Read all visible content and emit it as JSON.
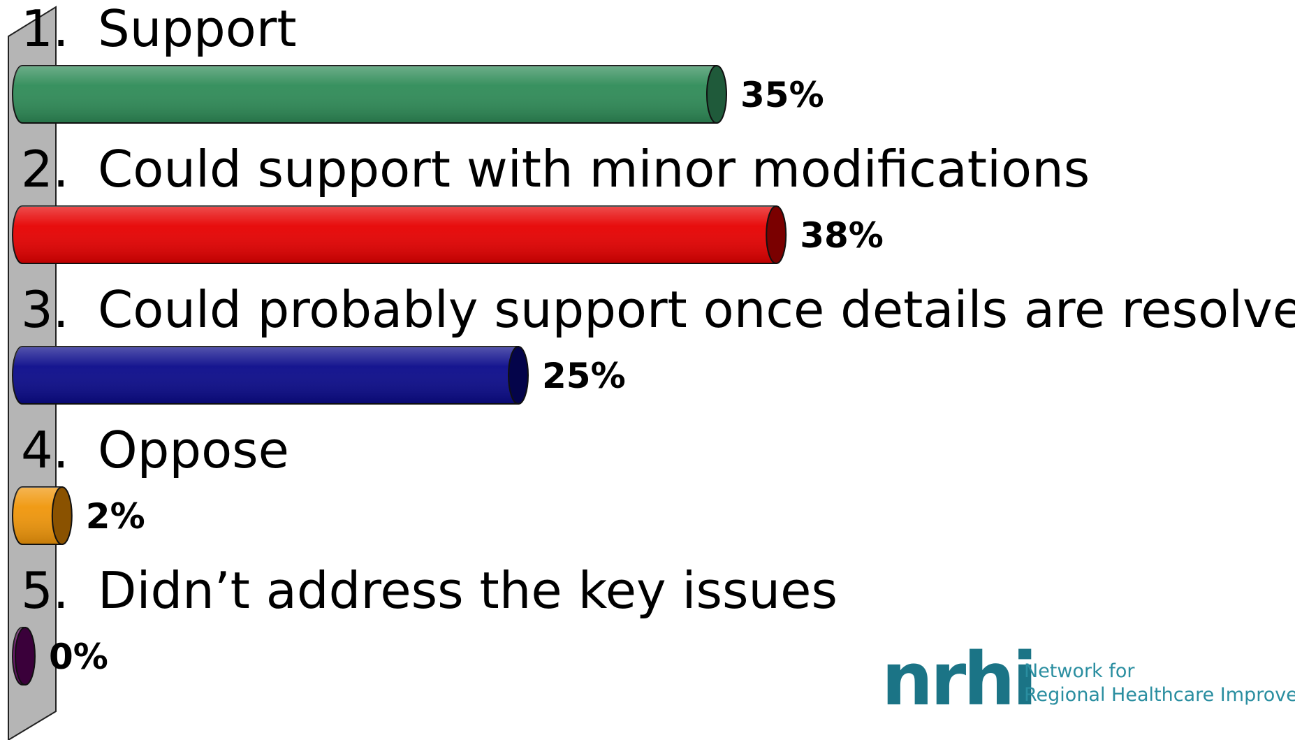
{
  "chart_data": {
    "type": "bar",
    "orientation": "horizontal",
    "categories": [
      {
        "number": "1.",
        "label": "Support",
        "value": 35,
        "display": "35%",
        "color": "#2e8b57",
        "cap": "#1f5a3a"
      },
      {
        "number": "2.",
        "label": "Could support with minor modifications",
        "value": 38,
        "display": "38%",
        "color": "#e60000",
        "cap": "#7a0000"
      },
      {
        "number": "3.",
        "label": "Could probably support once details are resolved",
        "value": 25,
        "display": "25%",
        "color": "#0a0a8a",
        "cap": "#04044a"
      },
      {
        "number": "4.",
        "label": "Oppose",
        "value": 2,
        "display": "2%",
        "color": "#f0960a",
        "cap": "#8a5200"
      },
      {
        "number": "5.",
        "label": "Didn’t address the key issues",
        "value": 0,
        "display": "0%",
        "color": "#6a0a6a",
        "cap": "#3a003a"
      }
    ],
    "value_unit": "%"
  },
  "logo": {
    "mark": "nrhi",
    "tagline_line1": "Network for",
    "tagline_line2": "Regional Healthcare Improvement"
  }
}
